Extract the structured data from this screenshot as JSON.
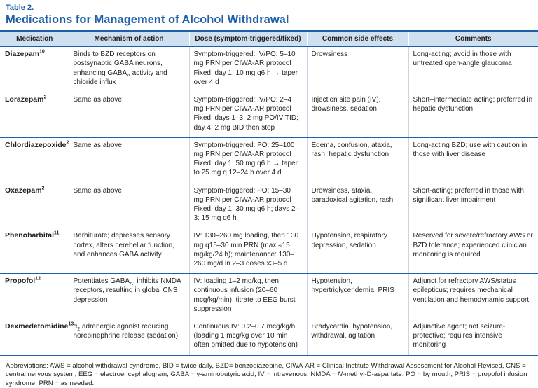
{
  "header": {
    "label": "Table 2.",
    "title": "Medications for Management of Alcohol Withdrawal"
  },
  "table": {
    "columns": [
      "Medication",
      "Mechanism of action",
      "Dose (symptom-triggered/fixed)",
      "Common side effects",
      "Comments"
    ],
    "rows": [
      {
        "medication": "Diazepam",
        "ref": "10",
        "mechanism": [
          "Binds to BZD receptors on postsynaptic GABA neurons, enhancing GABA",
          {
            "sub": "A"
          },
          " activity and chloride influx"
        ],
        "dose": [
          "Symptom-triggered: IV/PO: 5–10 mg PRN per CIWA-AR protocol",
          "Fixed: day 1: 10 mg q6 h → taper over 4 d"
        ],
        "side_effects": "Drowsiness",
        "comments": "Long-acting; avoid in those with untreated open-angle glaucoma"
      },
      {
        "medication": "Lorazepam",
        "ref": "2",
        "mechanism": [
          "Same as above"
        ],
        "dose": [
          "Symptom-triggered: IV/PO: 2–4 mg PRN per CIWA-AR protocol",
          "Fixed: days 1–3: 2 mg PO/IV TID; day 4: 2 mg BID then stop"
        ],
        "side_effects": "Injection site pain (IV), drowsiness, sedation",
        "comments": "Short–intermediate acting; preferred in hepatic dysfunction"
      },
      {
        "medication": "Chlordiazepoxide",
        "ref": "2",
        "mechanism": [
          "Same as above"
        ],
        "dose": [
          "Symptom-triggered: PO: 25–100 mg PRN per CIWA-AR protocol",
          "Fixed: day 1: 50 mg q6 h → taper to 25 mg q 12–24 h over 4 d"
        ],
        "side_effects": "Edema, confusion, ataxia, rash, hepatic dysfunction",
        "comments": "Long-acting BZD; use with caution in those with liver disease"
      },
      {
        "medication": "Oxazepam",
        "ref": "2",
        "mechanism": [
          "Same as above"
        ],
        "dose": [
          "Symptom-triggered: PO: 15–30 mg PRN per CIWA-AR protocol",
          "Fixed: day 1: 30 mg q6 h; days 2–3: 15 mg q6 h"
        ],
        "side_effects": "Drowsiness, ataxia, paradoxical agitation, rash",
        "comments": "Short-acting; preferred in those with significant liver impairment"
      },
      {
        "medication": "Phenobarbital",
        "ref": "11",
        "mechanism": [
          "Barbiturate; depresses sensory cortex, alters cerebellar function, and enhances GABA activity"
        ],
        "dose": [
          "IV: 130–260 mg loading, then 130 mg q15–30 min PRN (max ≈15 mg/kg/24 h); maintenance: 130–260 mg/d in 2–3 doses x3–5 d"
        ],
        "side_effects": "Hypotension, respiratory depression, sedation",
        "comments": "Reserved for severe/refractory AWS or BZD tolerance; experienced clinician monitoring is required"
      },
      {
        "medication": "Propofol",
        "ref": "12",
        "mechanism": [
          "Potentiates GABA",
          {
            "sub": "A"
          },
          ", inhibits NMDA receptors, resulting in global CNS depression"
        ],
        "dose": [
          "IV: loading 1–2 mg/kg, then continuous infusion (20–60 mcg/kg/min); titrate to EEG burst suppression"
        ],
        "side_effects": "Hypotension, hypertriglyceridemia, PRIS",
        "comments": "Adjunct for refractory AWS/status epilepticus; requires mechanical ventilation and hemodynamic support"
      },
      {
        "medication": "Dexmedetomidine",
        "ref": "13",
        "mechanism": [
          "α",
          {
            "sub": "2"
          },
          " adrenergic agonist reducing norepinephrine release (sedation)"
        ],
        "dose": [
          "Continuous IV: 0.2–0.7 mcg/kg/h (loading 1 mcg/kg over 10 min often omitted due to hypotension)"
        ],
        "side_effects": "Bradycardia, hypotension, withdrawal, agitation",
        "comments": "Adjunctive agent; not seizure-protective; requires intensive monitoring"
      }
    ]
  },
  "footnote": [
    "Abbreviations: AWS = alcohol withdrawal syndrome, BID = twice daily, BZD= benzodiazepine, CIWA-AR = Clinical Institute Withdrawal Assessment for Alcohol-Revised, CNS = central nervous system, EEG = electroencephalogram, GABA = γ-aminobutyric acid, IV = intravenous, NMDA = ",
    {
      "i": "N"
    },
    "-methyl-D-aspartate, PO = by mouth, PRIS = propofol infusion syndrome, PRN = as needed."
  ]
}
